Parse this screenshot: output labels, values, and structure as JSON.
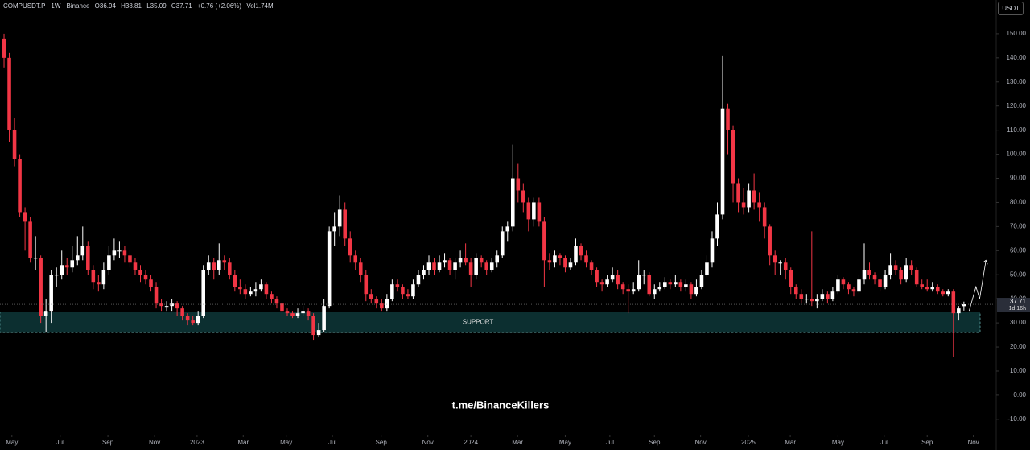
{
  "chart_data": {
    "type": "candlestick",
    "header": {
      "symbol": "COMPUSDT.P · 1W · Binance",
      "ohlc": [
        "O36.94",
        "H38.81",
        "L35.09",
        "C37.71"
      ],
      "change": "+0.76 (+2.06%)",
      "volume": "Vol1.74M"
    },
    "currency": "USDT",
    "watermark": "t.me/BinanceKillers",
    "countdown": "1d 16h",
    "up_color": "#ffffff",
    "down_color": "#f23645",
    "ylim": [
      -16.4,
      164
    ],
    "xlim": [
      -0.77,
      188.7
    ],
    "yticks": [
      {
        "value": -10,
        "label": "-10.00"
      },
      {
        "value": 0,
        "label": "0.00"
      },
      {
        "value": 10,
        "label": "10.00"
      },
      {
        "value": 20,
        "label": "20.00"
      },
      {
        "value": 30,
        "label": "30.00"
      },
      {
        "value": 40,
        "label": "40.00"
      },
      {
        "value": 50,
        "label": "50.00"
      },
      {
        "value": 60,
        "label": "60.00"
      },
      {
        "value": 70,
        "label": "70.00"
      },
      {
        "value": 80,
        "label": "80.00"
      },
      {
        "value": 90,
        "label": "90.00"
      },
      {
        "value": 100,
        "label": "100.00"
      },
      {
        "value": 110,
        "label": "110.00"
      },
      {
        "value": 120,
        "label": "120.00"
      },
      {
        "value": 130,
        "label": "130.00"
      },
      {
        "value": 140,
        "label": "140.00"
      },
      {
        "value": 150,
        "label": "150.00"
      }
    ],
    "xticks": [
      {
        "value": 1.5,
        "label": "May"
      },
      {
        "value": 10.7,
        "label": "Jul"
      },
      {
        "value": 19.8,
        "label": "Sep"
      },
      {
        "value": 28.7,
        "label": "Nov"
      },
      {
        "value": 36.8,
        "label": "2023"
      },
      {
        "value": 45.6,
        "label": "Mar"
      },
      {
        "value": 53.8,
        "label": "May"
      },
      {
        "value": 62.6,
        "label": "Jul"
      },
      {
        "value": 71.9,
        "label": "Sep"
      },
      {
        "value": 80.8,
        "label": "Nov"
      },
      {
        "value": 89,
        "label": "2024"
      },
      {
        "value": 97.9,
        "label": "Mar"
      },
      {
        "value": 107,
        "label": "May"
      },
      {
        "value": 115.5,
        "label": "Jul"
      },
      {
        "value": 124,
        "label": "Sep"
      },
      {
        "value": 132.8,
        "label": "Nov"
      },
      {
        "value": 141.9,
        "label": "2025"
      },
      {
        "value": 149.9,
        "label": "Mar"
      },
      {
        "value": 159,
        "label": "May"
      },
      {
        "value": 167.8,
        "label": "Jul"
      },
      {
        "value": 176,
        "label": "Sep"
      },
      {
        "value": 184.8,
        "label": "Nov"
      }
    ],
    "zones": [
      {
        "label": "SUPPORT",
        "from": 26,
        "to": 34.5
      }
    ],
    "projection": {
      "x": [
        184,
        185.3,
        186,
        187.2
      ],
      "y": [
        35,
        45,
        40,
        56
      ]
    },
    "ohlc": [
      [
        148,
        150,
        136,
        140
      ],
      [
        140,
        142,
        105,
        110
      ],
      [
        110,
        115,
        95,
        98
      ],
      [
        98,
        100,
        74,
        76
      ],
      [
        76,
        78,
        60,
        72
      ],
      [
        72,
        74,
        55,
        57
      ],
      [
        57,
        66,
        52,
        57
      ],
      [
        57,
        58,
        30,
        33
      ],
      [
        33,
        40,
        26,
        35
      ],
      [
        35,
        52,
        30,
        50
      ],
      [
        50,
        53,
        45,
        50
      ],
      [
        50,
        60,
        48,
        54
      ],
      [
        54,
        57,
        50,
        53
      ],
      [
        53,
        62,
        51,
        56
      ],
      [
        56,
        66,
        54,
        58
      ],
      [
        58,
        70,
        56,
        62
      ],
      [
        62,
        64,
        50,
        52
      ],
      [
        52,
        54,
        44,
        47
      ],
      [
        47,
        50,
        43,
        46
      ],
      [
        46,
        55,
        44,
        52
      ],
      [
        52,
        62,
        50,
        58
      ],
      [
        58,
        65,
        56,
        60
      ],
      [
        60,
        64,
        57,
        60
      ],
      [
        60,
        62,
        55,
        58
      ],
      [
        58,
        60,
        53,
        55
      ],
      [
        55,
        57,
        50,
        52
      ],
      [
        52,
        54,
        47,
        50
      ],
      [
        50,
        52,
        46,
        48
      ],
      [
        48,
        50,
        43,
        45
      ],
      [
        45,
        47,
        36,
        38
      ],
      [
        38,
        40,
        35,
        37
      ],
      [
        37,
        39,
        35,
        37
      ],
      [
        37,
        40,
        35,
        38
      ],
      [
        38,
        39,
        33,
        36
      ],
      [
        36,
        37,
        31,
        33
      ],
      [
        33,
        34,
        29,
        31
      ],
      [
        31,
        33,
        29,
        30
      ],
      [
        30,
        35,
        29,
        33
      ],
      [
        33,
        54,
        32,
        52
      ],
      [
        52,
        58,
        50,
        55
      ],
      [
        55,
        57,
        48,
        52
      ],
      [
        52,
        63,
        50,
        56
      ],
      [
        56,
        58,
        52,
        55
      ],
      [
        55,
        57,
        48,
        50
      ],
      [
        50,
        52,
        43,
        45
      ],
      [
        45,
        48,
        42,
        44
      ],
      [
        44,
        46,
        40,
        42
      ],
      [
        42,
        45,
        41,
        43
      ],
      [
        43,
        47,
        41,
        44
      ],
      [
        44,
        48,
        43,
        46
      ],
      [
        46,
        47,
        40,
        42
      ],
      [
        42,
        43,
        38,
        40
      ],
      [
        40,
        41,
        36,
        38
      ],
      [
        38,
        39,
        33,
        35
      ],
      [
        35,
        36,
        33,
        34
      ],
      [
        34,
        35,
        32,
        33
      ],
      [
        33,
        36,
        32,
        34
      ],
      [
        34,
        37,
        33,
        35
      ],
      [
        35,
        36,
        31,
        33
      ],
      [
        33,
        34,
        23,
        25
      ],
      [
        25,
        30,
        24,
        27
      ],
      [
        27,
        40,
        26,
        37
      ],
      [
        37,
        70,
        36,
        68
      ],
      [
        68,
        76,
        62,
        70
      ],
      [
        70,
        83,
        66,
        77
      ],
      [
        77,
        80,
        62,
        65
      ],
      [
        65,
        68,
        55,
        58
      ],
      [
        58,
        60,
        52,
        55
      ],
      [
        55,
        57,
        47,
        50
      ],
      [
        50,
        52,
        39,
        42
      ],
      [
        42,
        44,
        38,
        40
      ],
      [
        40,
        41,
        36,
        38
      ],
      [
        38,
        40,
        35,
        36
      ],
      [
        36,
        42,
        35,
        40
      ],
      [
        40,
        48,
        39,
        46
      ],
      [
        46,
        48,
        43,
        45
      ],
      [
        45,
        46,
        40,
        42
      ],
      [
        42,
        44,
        40,
        41
      ],
      [
        41,
        48,
        40,
        46
      ],
      [
        46,
        52,
        45,
        50
      ],
      [
        50,
        54,
        48,
        52
      ],
      [
        52,
        58,
        50,
        55
      ],
      [
        55,
        57,
        50,
        52
      ],
      [
        52,
        58,
        51,
        55
      ],
      [
        55,
        59,
        53,
        56
      ],
      [
        56,
        57,
        50,
        52
      ],
      [
        52,
        57,
        48,
        55
      ],
      [
        55,
        60,
        53,
        57
      ],
      [
        57,
        63,
        54,
        55
      ],
      [
        55,
        57,
        45,
        50
      ],
      [
        50,
        59,
        48,
        57
      ],
      [
        57,
        58,
        53,
        55
      ],
      [
        55,
        56,
        50,
        52
      ],
      [
        52,
        57,
        51,
        55
      ],
      [
        55,
        60,
        53,
        58
      ],
      [
        58,
        70,
        57,
        68
      ],
      [
        68,
        72,
        64,
        70
      ],
      [
        70,
        104,
        68,
        90
      ],
      [
        90,
        96,
        80,
        85
      ],
      [
        85,
        88,
        76,
        80
      ],
      [
        80,
        82,
        68,
        73
      ],
      [
        73,
        82,
        70,
        80
      ],
      [
        80,
        82,
        70,
        72
      ],
      [
        72,
        74,
        45,
        56
      ],
      [
        56,
        59,
        52,
        55
      ],
      [
        55,
        60,
        53,
        58
      ],
      [
        58,
        59,
        54,
        57
      ],
      [
        57,
        58,
        51,
        53
      ],
      [
        53,
        57,
        52,
        55
      ],
      [
        55,
        65,
        54,
        62
      ],
      [
        62,
        63,
        56,
        58
      ],
      [
        58,
        60,
        53,
        55
      ],
      [
        55,
        56,
        50,
        52
      ],
      [
        52,
        53,
        45,
        47
      ],
      [
        47,
        48,
        43,
        46
      ],
      [
        46,
        50,
        45,
        48
      ],
      [
        48,
        53,
        47,
        50
      ],
      [
        50,
        52,
        44,
        46
      ],
      [
        46,
        47,
        42,
        44
      ],
      [
        44,
        46,
        34,
        43
      ],
      [
        43,
        47,
        42,
        44
      ],
      [
        44,
        56,
        43,
        50
      ],
      [
        50,
        52,
        46,
        50
      ],
      [
        50,
        51,
        41,
        42
      ],
      [
        42,
        46,
        40,
        44
      ],
      [
        44,
        47,
        43,
        45
      ],
      [
        45,
        49,
        44,
        47
      ],
      [
        47,
        48,
        44,
        46
      ],
      [
        46,
        50,
        45,
        47
      ],
      [
        47,
        48,
        43,
        45
      ],
      [
        45,
        48,
        43,
        46
      ],
      [
        46,
        47,
        40,
        42
      ],
      [
        42,
        48,
        41,
        45
      ],
      [
        45,
        52,
        44,
        50
      ],
      [
        50,
        58,
        49,
        55
      ],
      [
        55,
        68,
        53,
        65
      ],
      [
        65,
        80,
        62,
        75
      ],
      [
        75,
        141,
        73,
        119
      ],
      [
        119,
        121,
        100,
        110
      ],
      [
        110,
        112,
        80,
        88
      ],
      [
        88,
        90,
        76,
        80
      ],
      [
        80,
        86,
        75,
        78
      ],
      [
        78,
        88,
        76,
        85
      ],
      [
        85,
        92,
        77,
        80
      ],
      [
        80,
        84,
        72,
        78
      ],
      [
        78,
        80,
        65,
        70
      ],
      [
        70,
        71,
        54,
        58
      ],
      [
        58,
        60,
        50,
        55
      ],
      [
        55,
        56,
        50,
        55
      ],
      [
        55,
        57,
        48,
        52
      ],
      [
        52,
        53,
        42,
        45
      ],
      [
        45,
        46,
        40,
        42
      ],
      [
        42,
        44,
        38,
        40
      ],
      [
        40,
        42,
        38,
        40
      ],
      [
        40,
        68,
        37,
        39
      ],
      [
        39,
        42,
        36,
        40
      ],
      [
        40,
        44,
        39,
        42
      ],
      [
        42,
        43,
        38,
        40
      ],
      [
        40,
        45,
        39,
        43
      ],
      [
        43,
        50,
        42,
        48
      ],
      [
        48,
        49,
        44,
        46
      ],
      [
        46,
        47,
        42,
        44
      ],
      [
        44,
        45,
        41,
        43
      ],
      [
        43,
        50,
        42,
        48
      ],
      [
        48,
        63,
        46,
        52
      ],
      [
        52,
        55,
        48,
        50
      ],
      [
        50,
        51,
        46,
        48
      ],
      [
        48,
        49,
        43,
        45
      ],
      [
        45,
        52,
        44,
        50
      ],
      [
        50,
        59,
        48,
        54
      ],
      [
        54,
        56,
        50,
        52
      ],
      [
        52,
        53,
        46,
        48
      ],
      [
        48,
        57,
        47,
        54
      ],
      [
        54,
        56,
        50,
        52
      ],
      [
        52,
        53,
        45,
        46
      ],
      [
        46,
        48,
        44,
        45
      ],
      [
        45,
        48,
        43,
        44
      ],
      [
        44,
        47,
        43,
        45
      ],
      [
        45,
        46,
        42,
        43
      ],
      [
        43,
        44,
        41,
        42
      ],
      [
        42,
        44,
        41,
        43
      ],
      [
        43,
        44,
        16,
        34
      ],
      [
        34,
        37,
        31,
        36
      ],
      [
        36.94,
        38.81,
        35.09,
        37.71
      ]
    ]
  }
}
